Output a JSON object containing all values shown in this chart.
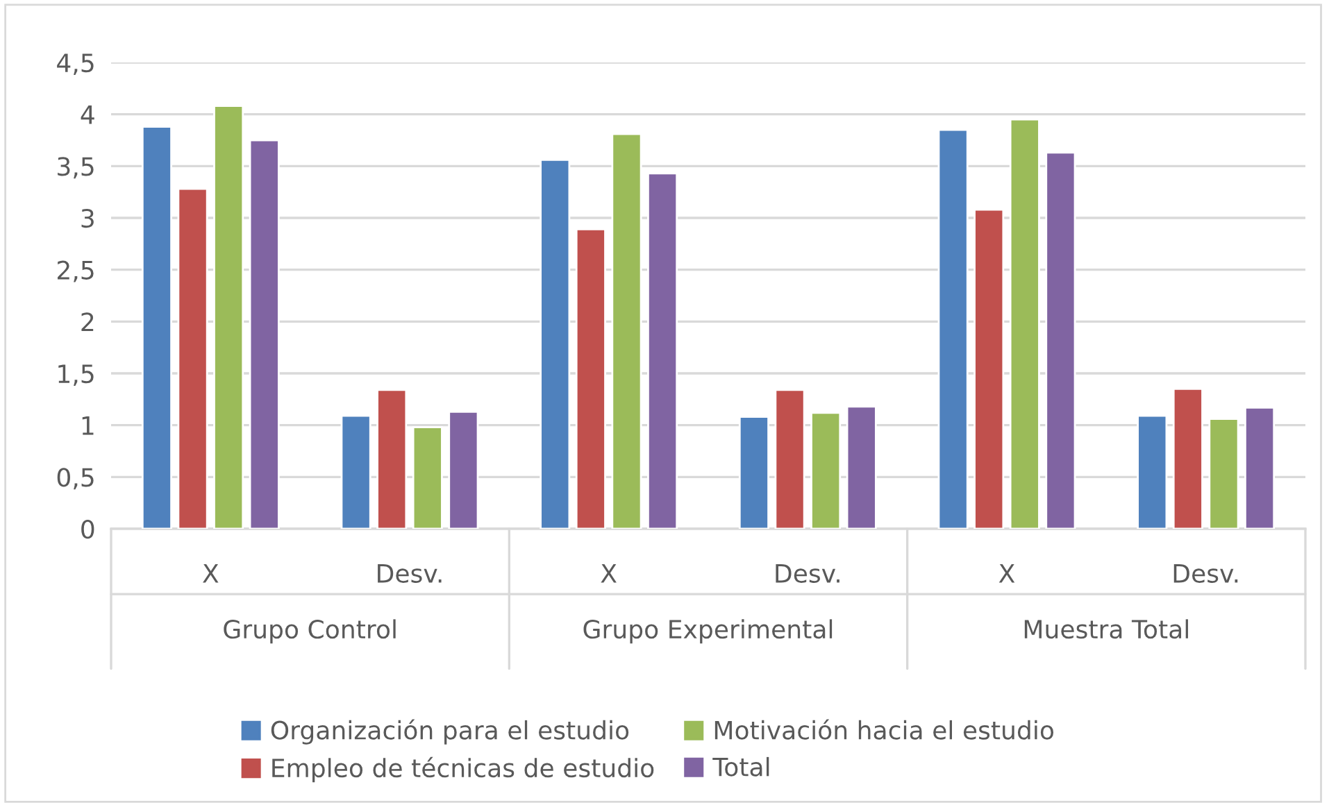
{
  "chart_data": {
    "type": "bar",
    "categories": [
      "X",
      "Desv.",
      "X",
      "Desv.",
      "X",
      "Desv."
    ],
    "annotations": [
      "Grupo Control",
      "Grupo Experimental",
      "Muestra Total"
    ],
    "series": [
      {
        "name": "Organización para el estudio",
        "color": "#4f81bd",
        "values": [
          3.88,
          1.09,
          3.56,
          1.08,
          3.85,
          1.09
        ]
      },
      {
        "name": "Empleo de técnicas de estudio",
        "color": "#c0504d",
        "values": [
          3.28,
          1.34,
          2.89,
          1.34,
          3.08,
          1.35
        ]
      },
      {
        "name": "Motivación hacia el estudio",
        "color": "#9bbb59",
        "values": [
          4.08,
          0.98,
          3.81,
          1.12,
          3.95,
          1.06
        ]
      },
      {
        "name": "Total",
        "color": "#8064a2",
        "values": [
          3.75,
          1.13,
          3.43,
          1.18,
          3.63,
          1.17
        ]
      }
    ],
    "ylim": [
      0,
      4.5
    ],
    "yticks": [
      {
        "value": 0,
        "label": "0"
      },
      {
        "value": 0.5,
        "label": "0,5"
      },
      {
        "value": 1,
        "label": "1"
      },
      {
        "value": 1.5,
        "label": "1,5"
      },
      {
        "value": 2,
        "label": "2"
      },
      {
        "value": 2.5,
        "label": "2,5"
      },
      {
        "value": 3,
        "label": "3"
      },
      {
        "value": 3.5,
        "label": "3,5"
      },
      {
        "value": 4,
        "label": "4"
      },
      {
        "value": 4.5,
        "label": "4,5"
      }
    ],
    "grid": "y",
    "legend": "bottom"
  }
}
